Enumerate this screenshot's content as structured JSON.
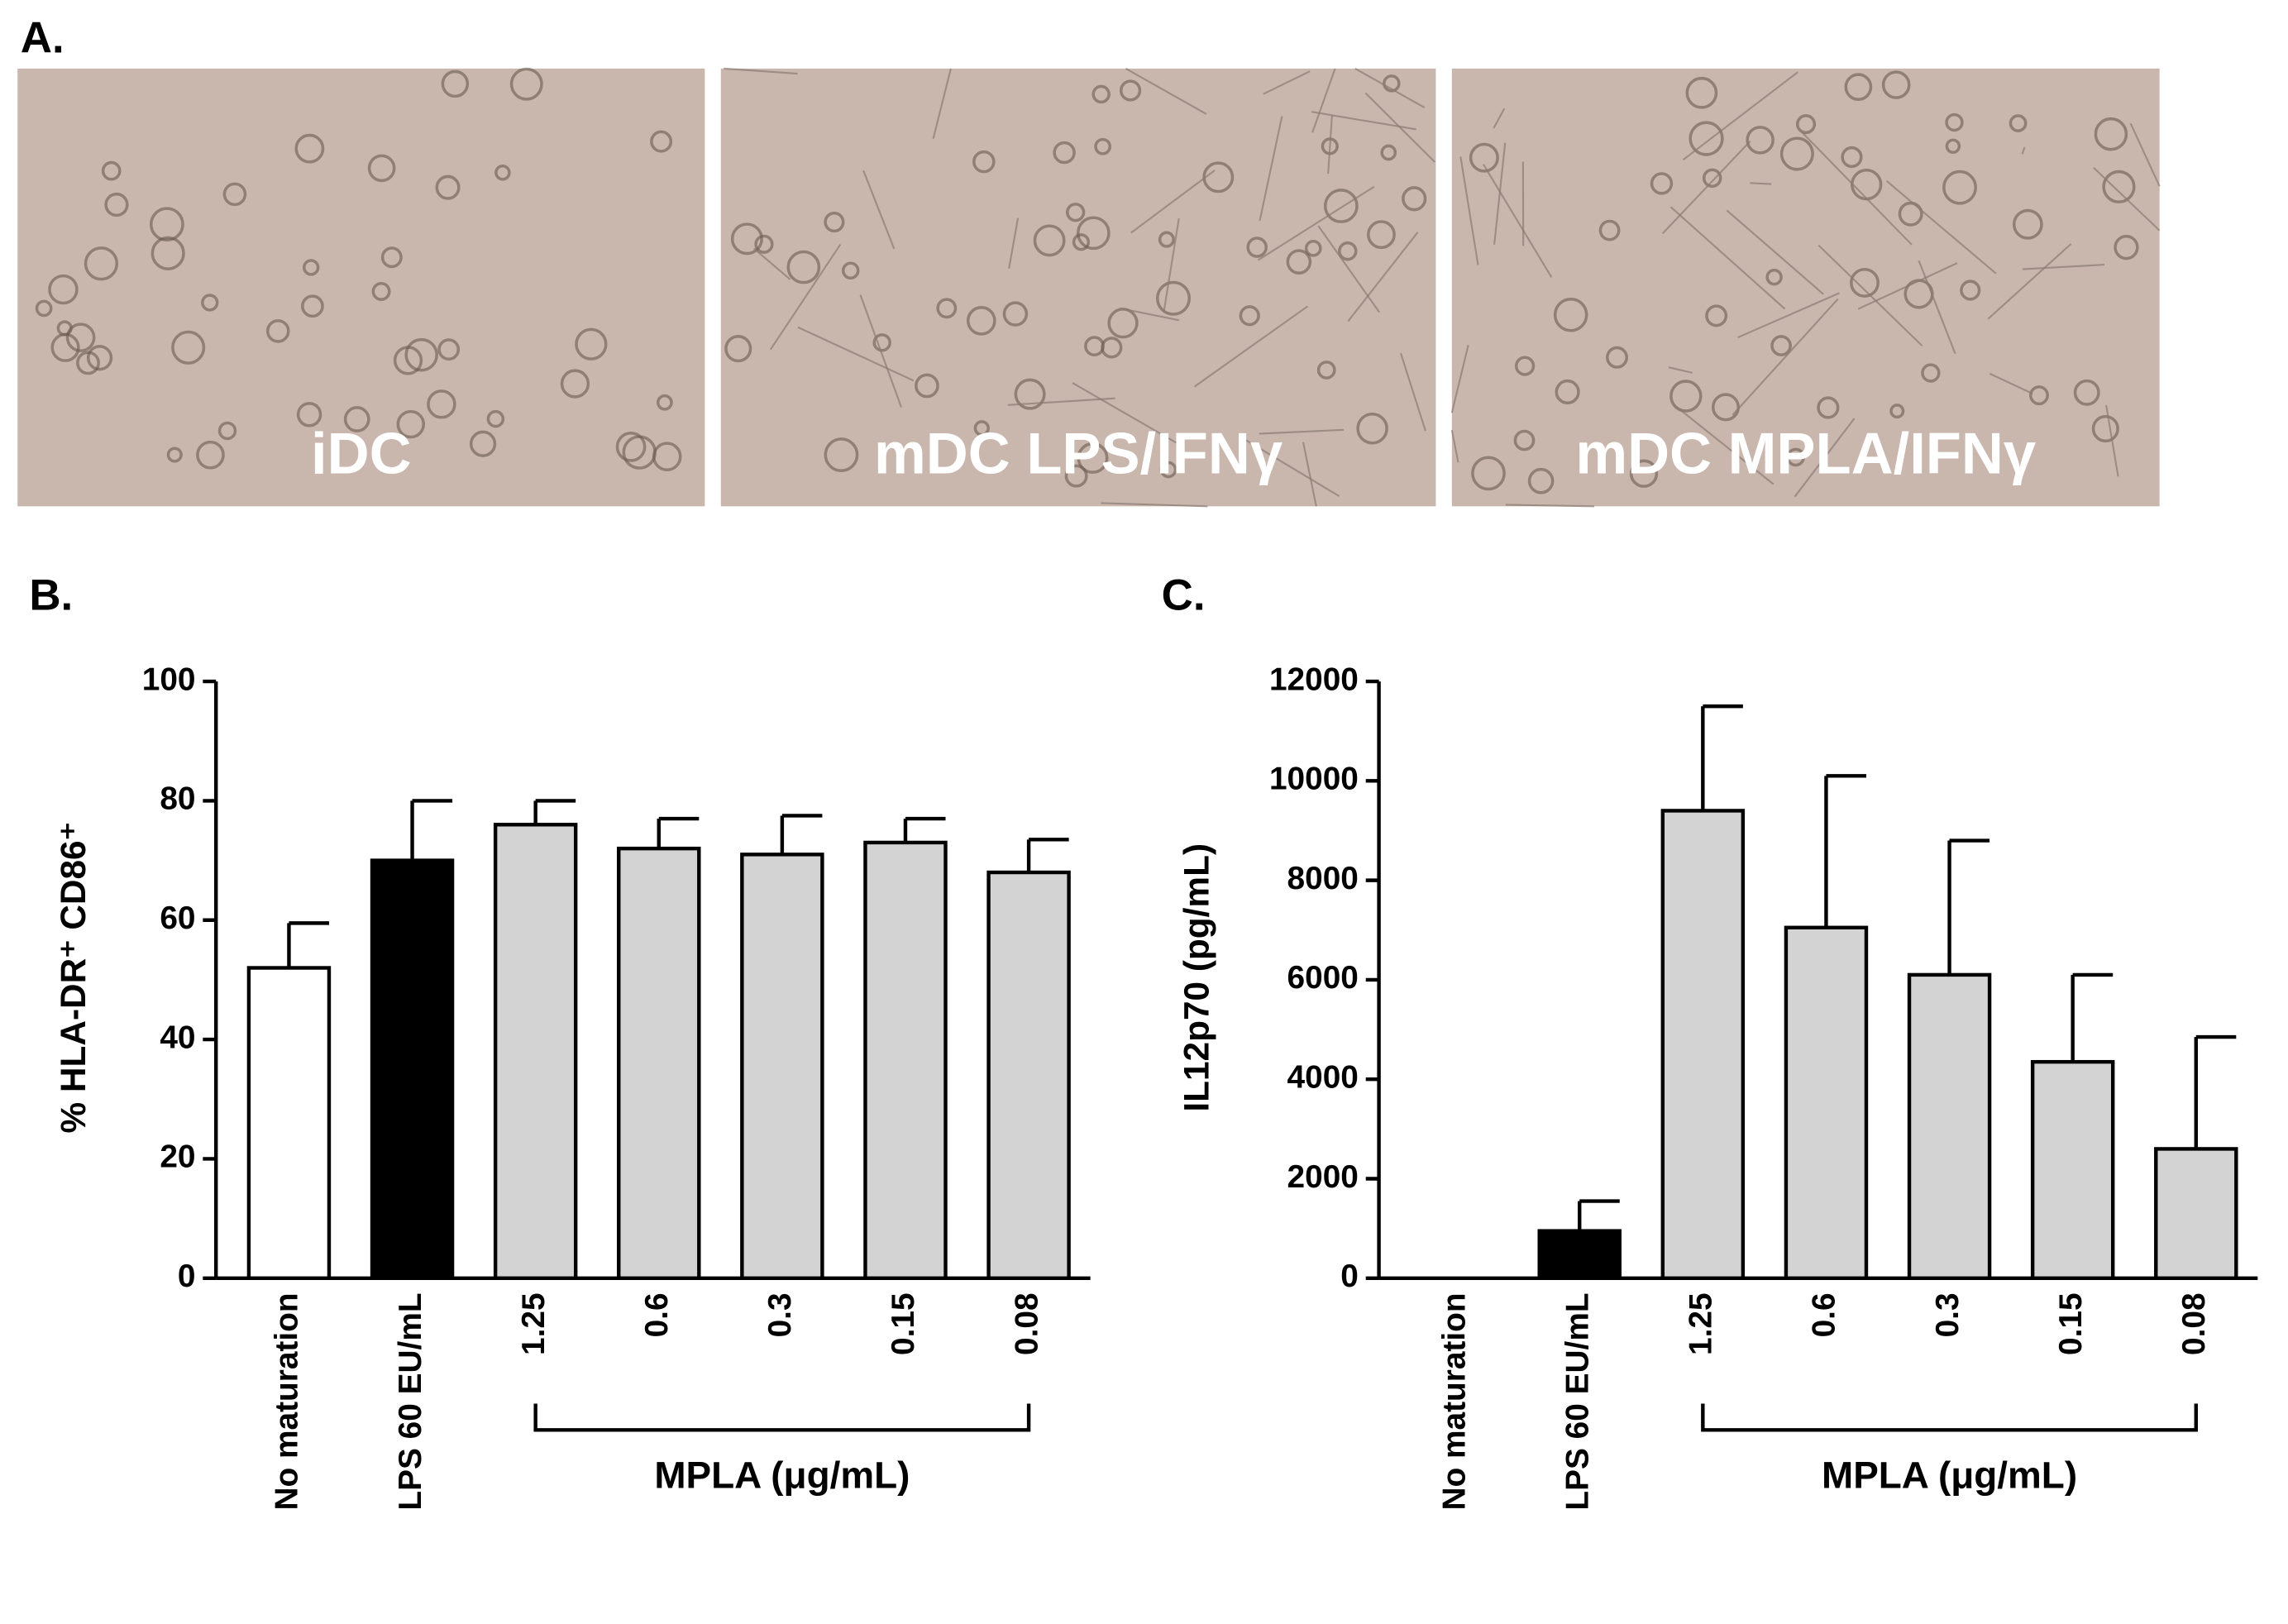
{
  "panel_a": {
    "label": "A.",
    "images": [
      "iDC",
      "mDC LPS/IFNγ",
      "mDC MPLA/IFNγ"
    ]
  },
  "chart_data": [
    {
      "type": "bar",
      "panel_label": "B.",
      "y_label": "% HLA-DR⁺ CD86⁺",
      "categories": [
        "No maturation",
        "LPS 60 EU/mL",
        "1.25",
        "0.6",
        "0.3",
        "0.15",
        "0.08"
      ],
      "values": [
        52,
        70,
        76,
        72,
        71,
        73,
        68
      ],
      "errors": [
        7.5,
        10,
        4,
        5,
        6.5,
        4,
        5.5
      ],
      "colors": [
        "#ffffff",
        "#000000",
        "#d3d3d3",
        "#d3d3d3",
        "#d3d3d3",
        "#d3d3d3",
        "#d3d3d3"
      ],
      "group_label": "MPLA (μg/mL)",
      "ylim": [
        0,
        100
      ],
      "yticks": [
        0,
        20,
        40,
        60,
        80,
        100
      ]
    },
    {
      "type": "bar",
      "panel_label": "C.",
      "y_label": "IL12p70 (pg/mL)",
      "categories": [
        "No maturation",
        "LPS 60 EU/mL",
        "1.25",
        "0.6",
        "0.3",
        "0.15",
        "0.08"
      ],
      "values": [
        0,
        950,
        9400,
        7050,
        6100,
        4350,
        2600
      ],
      "errors": [
        null,
        600,
        2100,
        3050,
        2700,
        1750,
        2250
      ],
      "colors": [
        "#ffffff",
        "#000000",
        "#d3d3d3",
        "#d3d3d3",
        "#d3d3d3",
        "#d3d3d3",
        "#d3d3d3"
      ],
      "group_label": "MPLA (μg/mL)",
      "ylim": [
        0,
        12000
      ],
      "yticks": [
        0,
        2000,
        4000,
        6000,
        8000,
        10000,
        12000
      ]
    }
  ]
}
